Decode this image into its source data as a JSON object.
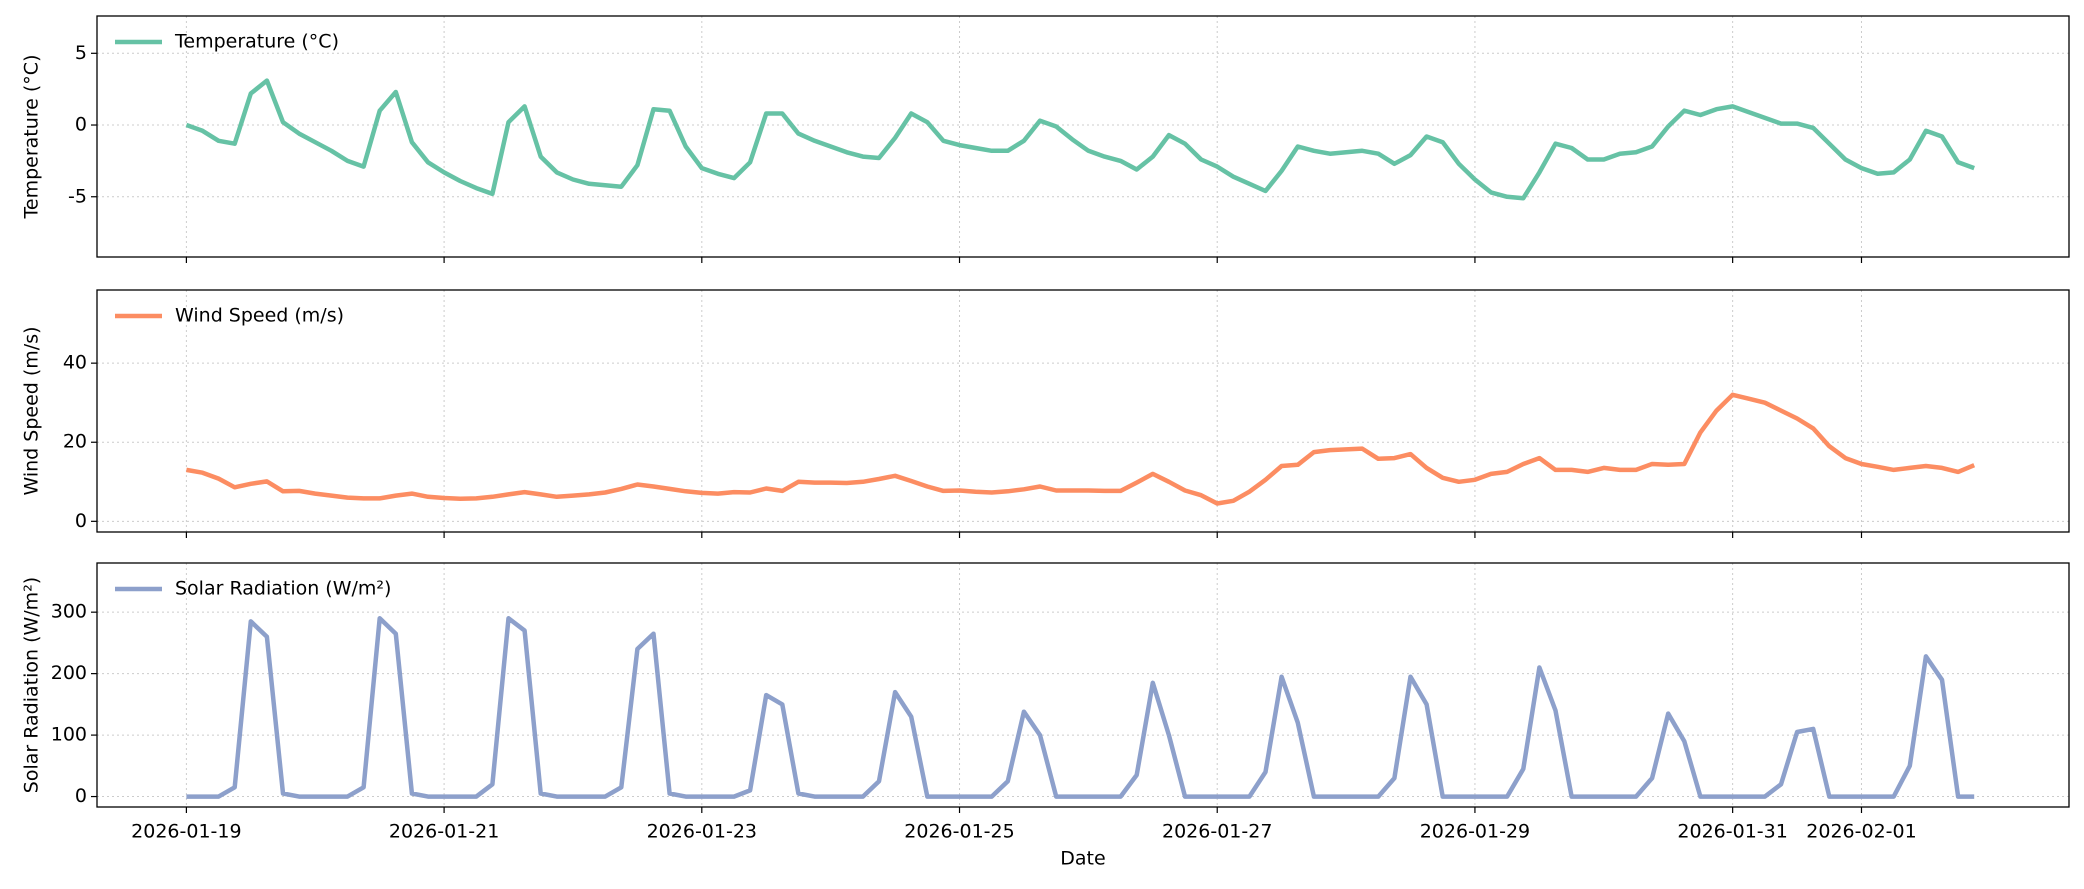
{
  "chart_data": {
    "type": "line",
    "xlabel": "Date",
    "x": [
      "2026-01-19T00:00",
      "2026-01-19T03:00",
      "2026-01-19T06:00",
      "2026-01-19T09:00",
      "2026-01-19T12:00",
      "2026-01-19T15:00",
      "2026-01-19T18:00",
      "2026-01-19T21:00",
      "2026-01-20T00:00",
      "2026-01-20T03:00",
      "2026-01-20T06:00",
      "2026-01-20T09:00",
      "2026-01-20T12:00",
      "2026-01-20T15:00",
      "2026-01-20T18:00",
      "2026-01-20T21:00",
      "2026-01-21T00:00",
      "2026-01-21T03:00",
      "2026-01-21T06:00",
      "2026-01-21T09:00",
      "2026-01-21T12:00",
      "2026-01-21T15:00",
      "2026-01-21T18:00",
      "2026-01-21T21:00",
      "2026-01-22T00:00",
      "2026-01-22T03:00",
      "2026-01-22T06:00",
      "2026-01-22T09:00",
      "2026-01-22T12:00",
      "2026-01-22T15:00",
      "2026-01-22T18:00",
      "2026-01-22T21:00",
      "2026-01-23T00:00",
      "2026-01-23T03:00",
      "2026-01-23T06:00",
      "2026-01-23T09:00",
      "2026-01-23T12:00",
      "2026-01-23T15:00",
      "2026-01-23T18:00",
      "2026-01-23T21:00",
      "2026-01-24T00:00",
      "2026-01-24T03:00",
      "2026-01-24T06:00",
      "2026-01-24T09:00",
      "2026-01-24T12:00",
      "2026-01-24T15:00",
      "2026-01-24T18:00",
      "2026-01-24T21:00",
      "2026-01-25T00:00",
      "2026-01-25T03:00",
      "2026-01-25T06:00",
      "2026-01-25T09:00",
      "2026-01-25T12:00",
      "2026-01-25T15:00",
      "2026-01-25T18:00",
      "2026-01-25T21:00",
      "2026-01-26T00:00",
      "2026-01-26T03:00",
      "2026-01-26T06:00",
      "2026-01-26T09:00",
      "2026-01-26T12:00",
      "2026-01-26T15:00",
      "2026-01-26T18:00",
      "2026-01-26T21:00",
      "2026-01-27T00:00",
      "2026-01-27T03:00",
      "2026-01-27T06:00",
      "2026-01-27T09:00",
      "2026-01-27T12:00",
      "2026-01-27T15:00",
      "2026-01-27T18:00",
      "2026-01-27T21:00",
      "2026-01-28T00:00",
      "2026-01-28T03:00",
      "2026-01-28T06:00",
      "2026-01-28T09:00",
      "2026-01-28T12:00",
      "2026-01-28T15:00",
      "2026-01-28T18:00",
      "2026-01-28T21:00",
      "2026-01-29T00:00",
      "2026-01-29T03:00",
      "2026-01-29T06:00",
      "2026-01-29T09:00",
      "2026-01-29T12:00",
      "2026-01-29T15:00",
      "2026-01-29T18:00",
      "2026-01-29T21:00",
      "2026-01-30T00:00",
      "2026-01-30T03:00",
      "2026-01-30T06:00",
      "2026-01-30T09:00",
      "2026-01-30T12:00",
      "2026-01-30T15:00",
      "2026-01-30T18:00",
      "2026-01-30T21:00",
      "2026-01-31T00:00",
      "2026-01-31T03:00",
      "2026-01-31T06:00",
      "2026-01-31T09:00",
      "2026-01-31T12:00",
      "2026-01-31T15:00",
      "2026-01-31T18:00",
      "2026-01-31T21:00",
      "2026-02-01T00:00",
      "2026-02-01T03:00",
      "2026-02-01T06:00",
      "2026-02-01T09:00",
      "2026-02-01T12:00",
      "2026-02-01T15:00",
      "2026-02-01T18:00",
      "2026-02-01T21:00"
    ],
    "xlim": [
      "2026-01-18T07:21",
      "2026-02-02T14:39"
    ],
    "xticks": [
      "2026-01-19",
      "2026-01-21",
      "2026-01-23",
      "2026-01-25",
      "2026-01-27",
      "2026-01-29",
      "2026-01-31",
      "2026-02-01"
    ],
    "grid": true,
    "legend": "upper left",
    "panels": [
      {
        "ylabel": "Temperature (°C)",
        "ylim": [
          -9.2,
          7.6
        ],
        "yticks": [
          -5,
          0,
          5
        ],
        "series": [
          {
            "name": "Temperature (°C)",
            "color": "#66c2a5",
            "values": [
              0.0,
              -0.4,
              -1.1,
              -1.3,
              2.2,
              3.1,
              0.2,
              -0.6,
              -1.2,
              -1.8,
              -2.5,
              -2.9,
              1.0,
              2.3,
              -1.2,
              -2.6,
              -3.3,
              -3.9,
              -4.4,
              -4.8,
              0.2,
              1.3,
              -2.2,
              -3.3,
              -3.8,
              -4.1,
              -4.2,
              -4.3,
              -2.8,
              1.1,
              1.0,
              -1.5,
              -3.0,
              -3.4,
              -3.7,
              -2.6,
              0.8,
              0.8,
              -0.6,
              -1.1,
              -1.5,
              -1.9,
              -2.2,
              -2.3,
              -0.9,
              0.8,
              0.2,
              -1.1,
              -1.4,
              -1.6,
              -1.8,
              -1.8,
              -1.1,
              0.3,
              -0.1,
              -1.0,
              -1.8,
              -2.2,
              -2.5,
              -3.1,
              -2.2,
              -0.7,
              -1.3,
              -2.4,
              -2.9,
              -3.6,
              -4.1,
              -4.6,
              -3.2,
              -1.5,
              -1.8,
              -2.0,
              -1.9,
              -1.8,
              -2.0,
              -2.7,
              -2.1,
              -0.8,
              -1.2,
              -2.7,
              -3.8,
              -4.7,
              -5.0,
              -5.1,
              -3.3,
              -1.3,
              -1.6,
              -2.4,
              -2.4,
              -2.0,
              -1.9,
              -1.5,
              -0.1,
              1.0,
              0.7,
              1.1,
              1.3,
              0.9,
              0.5,
              0.1,
              0.1,
              -0.2,
              -1.3,
              -2.4,
              -3.0,
              -3.4,
              -3.3,
              -2.4,
              -0.4,
              -0.8,
              -2.6,
              -3.0
            ]
          }
        ]
      },
      {
        "ylabel": "Wind Speed (m/s)",
        "ylim": [
          -2.7,
          58.5
        ],
        "yticks": [
          0,
          20,
          40
        ],
        "series": [
          {
            "name": "Wind Speed (m/s)",
            "color": "#fc8d62",
            "values": [
              13,
              12.3,
              10.8,
              8.6,
              9.5,
              10.1,
              7.6,
              7.7,
              7,
              6.5,
              6,
              5.8,
              5.8,
              6.5,
              7,
              6.2,
              5.9,
              5.7,
              5.8,
              6.2,
              6.8,
              7.4,
              6.8,
              6.2,
              6.5,
              6.8,
              7.3,
              8.2,
              9.3,
              8.8,
              8.2,
              7.6,
              7.2,
              7.0,
              7.4,
              7.3,
              8.3,
              7.7,
              10.0,
              9.8,
              9.8,
              9.7,
              10.0,
              10.7,
              11.5,
              10.2,
              8.8,
              7.7,
              7.8,
              7.5,
              7.3,
              7.6,
              8.1,
              8.8,
              7.8,
              7.8,
              7.8,
              7.7,
              7.7,
              9.8,
              12.0,
              10.0,
              7.8,
              6.6,
              4.5,
              5.2,
              7.5,
              10.5,
              14.0,
              14.3,
              17.5,
              18.0,
              18.2,
              18.4,
              15.8,
              16.0,
              17.0,
              13.5,
              11.0,
              10.0,
              10.5,
              12.0,
              12.5,
              14.5,
              16.0,
              13.0,
              13.0,
              12.5,
              13.5,
              13.0,
              13.0,
              14.5,
              14.3,
              14.5,
              22.5,
              28.0,
              32.0,
              31.0,
              30.0,
              28.0,
              26.0,
              23.5,
              19.0,
              16.0,
              14.5,
              13.8,
              13.0,
              13.5,
              14.0,
              13.5,
              12.5,
              14.2
            ]
          }
        ]
      },
      {
        "ylabel": "Solar Radiation (W/m²)",
        "ylim": [
          -17,
          380
        ],
        "yticks": [
          0,
          100,
          200,
          300
        ],
        "series": [
          {
            "name": "Solar Radiation (W/m²)",
            "color": "#8da0cb",
            "values": [
              0,
              0,
              0,
              15,
              285,
              260,
              5,
              0,
              0,
              0,
              0,
              15,
              290,
              265,
              5,
              0,
              0,
              0,
              0,
              20,
              290,
              270,
              5,
              0,
              0,
              0,
              0,
              15,
              240,
              265,
              5,
              0,
              0,
              0,
              0,
              10,
              165,
              150,
              5,
              0,
              0,
              0,
              0,
              25,
              170,
              130,
              0,
              0,
              0,
              0,
              0,
              25,
              138,
              100,
              0,
              0,
              0,
              0,
              0,
              35,
              185,
              100,
              0,
              0,
              0,
              0,
              0,
              40,
              195,
              120,
              0,
              0,
              0,
              0,
              0,
              30,
              195,
              150,
              0,
              0,
              0,
              0,
              0,
              45,
              210,
              140,
              0,
              0,
              0,
              0,
              0,
              30,
              135,
              90,
              0,
              0,
              0,
              0,
              0,
              20,
              105,
              110,
              0,
              0,
              0,
              0,
              0,
              50,
              228,
              190,
              0,
              0
            ]
          }
        ]
      }
    ]
  }
}
